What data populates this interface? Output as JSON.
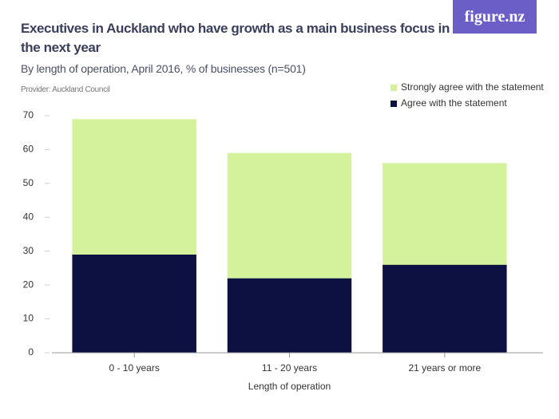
{
  "chart_data": {
    "type": "stacked-bar",
    "title": "Executives in Auckland who have growth as a main business focus in the next year",
    "subtitle": "By length of operation, April 2016, % of businesses (n=501)",
    "source": "Provider: Auckland Council",
    "logo": "figure.nz",
    "x_label": "Length of operation",
    "categories": [
      "0 - 10 years",
      "11 - 20 years",
      "21 years or more"
    ],
    "series": [
      {
        "name": "Agree with the statement",
        "color": "#0c1142",
        "values": [
          29,
          22,
          26
        ]
      },
      {
        "name": "Strongly agree with the statement",
        "color": "#d4f29b",
        "values": [
          40,
          37,
          30
        ]
      }
    ],
    "ylim": [
      0,
      70
    ],
    "yticks": [
      0,
      10,
      20,
      30,
      40,
      50,
      60,
      70
    ],
    "grid": false
  }
}
